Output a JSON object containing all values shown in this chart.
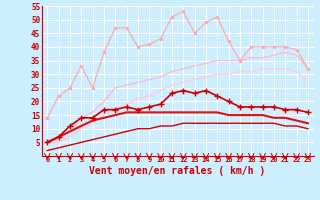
{
  "xlabel": "Vent moyen/en rafales ( km/h )",
  "x": [
    0,
    1,
    2,
    3,
    4,
    5,
    6,
    7,
    8,
    9,
    10,
    11,
    12,
    13,
    14,
    15,
    16,
    17,
    18,
    19,
    20,
    21,
    22,
    23
  ],
  "line_pink_jagged": [
    14,
    22,
    25,
    33,
    25,
    38,
    47,
    47,
    40,
    41,
    43,
    51,
    53,
    45,
    49,
    51,
    42,
    35,
    40,
    40,
    40,
    40,
    39,
    32
  ],
  "line_pink_upper": [
    5,
    6,
    9,
    14,
    16,
    20,
    25,
    26,
    27,
    28,
    29,
    31,
    32,
    33,
    34,
    35,
    35,
    35,
    36,
    36,
    37,
    38,
    37,
    32
  ],
  "line_pink_lower": [
    5,
    5,
    7,
    10,
    12,
    15,
    17,
    19,
    21,
    22,
    24,
    26,
    27,
    28,
    29,
    30,
    30,
    31,
    31,
    32,
    32,
    32,
    31,
    27
  ],
  "line_red_jagged": [
    5,
    7,
    11,
    14,
    14,
    17,
    17,
    18,
    17,
    18,
    19,
    23,
    24,
    23,
    24,
    22,
    20,
    18,
    18,
    18,
    18,
    17,
    17,
    16
  ],
  "line_red_upper": [
    5,
    7,
    9,
    11,
    13,
    14,
    15,
    16,
    16,
    16,
    16,
    16,
    16,
    16,
    16,
    16,
    15,
    15,
    15,
    15,
    14,
    14,
    13,
    12
  ],
  "line_red_lower": [
    2,
    3,
    4,
    5,
    6,
    7,
    8,
    9,
    10,
    10,
    11,
    11,
    12,
    12,
    12,
    12,
    12,
    12,
    12,
    12,
    12,
    11,
    11,
    10
  ],
  "color_pink_jagged": "#ffaaaa",
  "color_pink_band": "#ffbbcc",
  "color_red_jagged": "#cc0000",
  "color_red_band": "#ee2222",
  "color_red_lower": "#cc0000",
  "bg_color": "#cceeff",
  "grid_color": "#aaddcc",
  "ylim": [
    0,
    55
  ],
  "yticks": [
    5,
    10,
    15,
    20,
    25,
    30,
    35,
    40,
    45,
    50,
    55
  ]
}
